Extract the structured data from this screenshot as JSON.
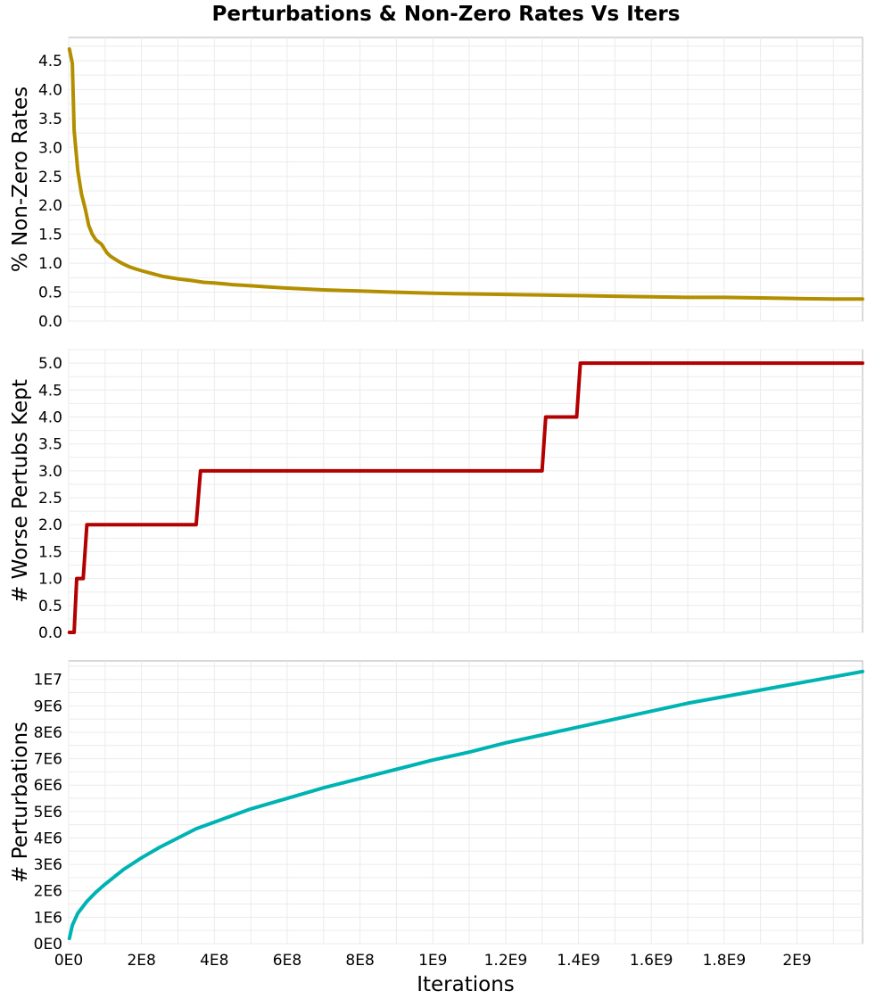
{
  "chart_data": {
    "title": "Perturbations & Non-Zero Rates Vs Iters",
    "xlabel": "Iterations",
    "shared_x": true,
    "xlim": [
      0,
      2180000000
    ],
    "x_ticks": [
      0,
      200000000,
      400000000,
      600000000,
      800000000,
      1000000000,
      1200000000,
      1400000000,
      1600000000,
      1800000000,
      2000000000
    ],
    "x_tick_labels": [
      "0E0",
      "2E8",
      "4E8",
      "6E8",
      "8E8",
      "1E9",
      "1.2E9",
      "1.4E9",
      "1.6E9",
      "1.8E9",
      "2E9"
    ],
    "grid": true,
    "panels": [
      {
        "type": "line",
        "ylabel": "% Non-Zero Rates",
        "ylim": [
          0,
          4.9
        ],
        "y_ticks": [
          0,
          0.5,
          1.0,
          1.5,
          2.0,
          2.5,
          3.0,
          3.5,
          4.0,
          4.5
        ],
        "y_tick_labels": [
          "0.0",
          "0.5",
          "1.0",
          "1.5",
          "2.0",
          "2.5",
          "3.0",
          "3.5",
          "4.0",
          "4.5"
        ],
        "color": "#b38f00",
        "series": [
          {
            "x": [
              2000000,
              10000000,
              15000000,
              25000000,
              35000000,
              45000000,
              55000000,
              65000000,
              75000000,
              90000000,
              105000000,
              115000000,
              125000000,
              140000000,
              155000000,
              170000000,
              185000000,
              200000000,
              230000000,
              260000000,
              300000000,
              340000000,
              370000000,
              400000000,
              450000000,
              500000000,
              550000000,
              600000000,
              700000000,
              800000000,
              900000000,
              1000000000,
              1100000000,
              1200000000,
              1300000000,
              1400000000,
              1500000000,
              1600000000,
              1700000000,
              1800000000,
              1900000000,
              2000000000,
              2100000000,
              2180000000
            ],
            "y": [
              4.7,
              4.45,
              3.3,
              2.6,
              2.2,
              1.95,
              1.65,
              1.5,
              1.4,
              1.33,
              1.18,
              1.12,
              1.08,
              1.02,
              0.97,
              0.93,
              0.9,
              0.87,
              0.82,
              0.77,
              0.73,
              0.7,
              0.67,
              0.66,
              0.63,
              0.61,
              0.59,
              0.57,
              0.54,
              0.52,
              0.5,
              0.48,
              0.47,
              0.46,
              0.45,
              0.44,
              0.43,
              0.42,
              0.41,
              0.41,
              0.4,
              0.39,
              0.38,
              0.38
            ]
          }
        ]
      },
      {
        "type": "line",
        "ylabel": "# Worse Pertubs Kept",
        "ylim": [
          0,
          5.25
        ],
        "y_ticks": [
          0,
          0.5,
          1.0,
          1.5,
          2.0,
          2.5,
          3.0,
          3.5,
          4.0,
          4.5,
          5.0
        ],
        "y_tick_labels": [
          "0.0",
          "0.5",
          "1.0",
          "1.5",
          "2.0",
          "2.5",
          "3.0",
          "3.5",
          "4.0",
          "4.5",
          "5.0"
        ],
        "color": "#b30000",
        "series": [
          {
            "x": [
              2000000,
              15000000,
              22000000,
              40000000,
              50000000,
              350000000,
              362000000,
              1300000000,
              1310000000,
              1395000000,
              1405000000,
              2180000000
            ],
            "y": [
              0,
              0,
              1,
              1,
              2,
              2,
              3,
              3,
              4,
              4,
              5,
              5
            ]
          }
        ]
      },
      {
        "type": "line",
        "ylabel": "# Perturbations",
        "ylim": [
          0,
          10700000
        ],
        "y_ticks": [
          0,
          1000000,
          2000000,
          3000000,
          4000000,
          5000000,
          6000000,
          7000000,
          8000000,
          9000000,
          10000000
        ],
        "y_tick_labels": [
          "0E0",
          "1E6",
          "2E6",
          "3E6",
          "4E6",
          "5E6",
          "6E6",
          "7E6",
          "8E6",
          "9E6",
          "1E7"
        ],
        "color": "#00b3b3",
        "series": [
          {
            "x": [
              2000000,
              10000000,
              25000000,
              50000000,
              75000000,
              100000000,
              150000000,
              200000000,
              250000000,
              300000000,
              350000000,
              400000000,
              500000000,
              600000000,
              700000000,
              800000000,
              900000000,
              1000000000,
              1100000000,
              1200000000,
              1300000000,
              1400000000,
              1500000000,
              1600000000,
              1700000000,
              1800000000,
              1900000000,
              2000000000,
              2100000000,
              2180000000
            ],
            "y": [
              200000,
              700000,
              1150000,
              1600000,
              1950000,
              2250000,
              2800000,
              3250000,
              3650000,
              4000000,
              4350000,
              4600000,
              5100000,
              5500000,
              5900000,
              6250000,
              6600000,
              6950000,
              7250000,
              7600000,
              7900000,
              8200000,
              8500000,
              8800000,
              9100000,
              9350000,
              9600000,
              9850000,
              10100000,
              10300000
            ]
          }
        ]
      }
    ]
  }
}
